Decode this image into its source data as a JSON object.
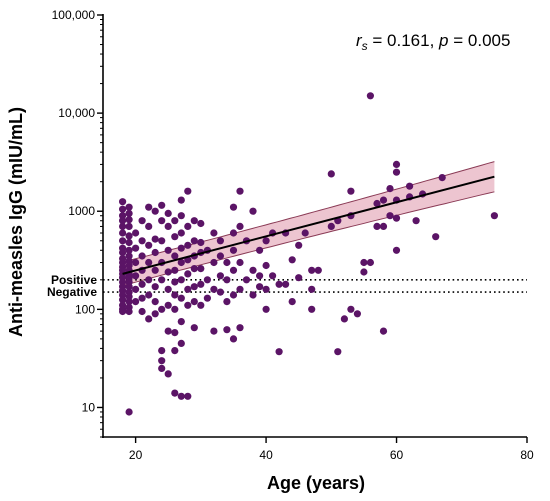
{
  "chart_data": {
    "type": "scatter",
    "xlabel": "Age (years)",
    "ylabel": "Anti-measles IgG (mIU/mL)",
    "xlim": [
      15,
      80
    ],
    "ylim": [
      5,
      100000
    ],
    "y_scale": "log",
    "x_ticks": [
      20,
      40,
      60,
      80
    ],
    "x_tick_labels": [
      "20",
      "40",
      "60",
      "80"
    ],
    "y_ticks": [
      10,
      100,
      1000,
      10000,
      100000
    ],
    "y_tick_labels": [
      "10",
      "100",
      "1000",
      "10,000",
      "100,000"
    ],
    "annotation": {
      "r_symbol": "r",
      "r_subscript": "s",
      "r_value": " = 0.161, ",
      "p_symbol": "p",
      "p_value": " = 0.005"
    },
    "thresholds": [
      {
        "label": "Positive",
        "value": 200
      },
      {
        "label": "Negative",
        "value": 150
      }
    ],
    "regression": {
      "x_range": [
        18,
        75
      ],
      "y_start": 230,
      "y_end": 2250,
      "ci_lower_start": 175,
      "ci_upper_start": 305,
      "ci_lower_end": 1550,
      "ci_upper_end": 3150
    },
    "colors": {
      "points": "#5b1466",
      "line": "#000000",
      "band": "#e8b6c4",
      "band_edge": "#8a3a55"
    },
    "points": [
      [
        18,
        1250
      ],
      [
        18,
        1050
      ],
      [
        18,
        900
      ],
      [
        18,
        800
      ],
      [
        18,
        700
      ],
      [
        18,
        600
      ],
      [
        18,
        500
      ],
      [
        18,
        420
      ],
      [
        18,
        380
      ],
      [
        18,
        330
      ],
      [
        18,
        300
      ],
      [
        18,
        270
      ],
      [
        18,
        250
      ],
      [
        18,
        230
      ],
      [
        18,
        210
      ],
      [
        18,
        190
      ],
      [
        18,
        170
      ],
      [
        18,
        155
      ],
      [
        18,
        140
      ],
      [
        18,
        125
      ],
      [
        18,
        110
      ],
      [
        18,
        100
      ],
      [
        18,
        95
      ],
      [
        19,
        1100
      ],
      [
        19,
        950
      ],
      [
        19,
        820
      ],
      [
        19,
        700
      ],
      [
        19,
        560
      ],
      [
        19,
        480
      ],
      [
        19,
        400
      ],
      [
        19,
        350
      ],
      [
        19,
        310
      ],
      [
        19,
        280
      ],
      [
        19,
        250
      ],
      [
        19,
        230
      ],
      [
        19,
        210
      ],
      [
        19,
        190
      ],
      [
        19,
        170
      ],
      [
        19,
        150
      ],
      [
        19,
        135
      ],
      [
        19,
        120
      ],
      [
        19,
        105
      ],
      [
        19,
        95
      ],
      [
        19,
        9
      ],
      [
        20,
        600
      ],
      [
        20,
        420
      ],
      [
        20,
        300
      ],
      [
        20,
        220
      ],
      [
        20,
        160
      ],
      [
        20,
        120
      ],
      [
        21,
        800
      ],
      [
        21,
        500
      ],
      [
        21,
        350
      ],
      [
        21,
        250
      ],
      [
        21,
        180
      ],
      [
        21,
        130
      ],
      [
        21,
        95
      ],
      [
        22,
        1100
      ],
      [
        22,
        700
      ],
      [
        22,
        450
      ],
      [
        22,
        300
      ],
      [
        22,
        200
      ],
      [
        22,
        140
      ],
      [
        22,
        80
      ],
      [
        23,
        1000
      ],
      [
        23,
        520
      ],
      [
        23,
        380
      ],
      [
        23,
        250
      ],
      [
        23,
        170
      ],
      [
        23,
        120
      ],
      [
        23,
        90
      ],
      [
        24,
        1150
      ],
      [
        24,
        800
      ],
      [
        24,
        500
      ],
      [
        24,
        300
      ],
      [
        24,
        200
      ],
      [
        24,
        100
      ],
      [
        24,
        38
      ],
      [
        24,
        30
      ],
      [
        24,
        25
      ],
      [
        25,
        950
      ],
      [
        25,
        700
      ],
      [
        25,
        400
      ],
      [
        25,
        240
      ],
      [
        25,
        160
      ],
      [
        25,
        110
      ],
      [
        25,
        60
      ],
      [
        25,
        22
      ],
      [
        26,
        800
      ],
      [
        26,
        550
      ],
      [
        26,
        350
      ],
      [
        26,
        250
      ],
      [
        26,
        190
      ],
      [
        26,
        140
      ],
      [
        26,
        100
      ],
      [
        26,
        58
      ],
      [
        26,
        38
      ],
      [
        26,
        14
      ],
      [
        27,
        1300
      ],
      [
        27,
        900
      ],
      [
        27,
        600
      ],
      [
        27,
        420
      ],
      [
        27,
        300
      ],
      [
        27,
        200
      ],
      [
        27,
        130
      ],
      [
        27,
        75
      ],
      [
        27,
        45
      ],
      [
        27,
        13
      ],
      [
        28,
        1600
      ],
      [
        28,
        700
      ],
      [
        28,
        450
      ],
      [
        28,
        320
      ],
      [
        28,
        230
      ],
      [
        28,
        160
      ],
      [
        28,
        110
      ],
      [
        28,
        13
      ],
      [
        29,
        800
      ],
      [
        29,
        500
      ],
      [
        29,
        350
      ],
      [
        29,
        260
      ],
      [
        29,
        170
      ],
      [
        29,
        120
      ],
      [
        29,
        65
      ],
      [
        30,
        750
      ],
      [
        30,
        480
      ],
      [
        30,
        380
      ],
      [
        30,
        260
      ],
      [
        30,
        180
      ],
      [
        30,
        110
      ],
      [
        31,
        400
      ],
      [
        31,
        200
      ],
      [
        31,
        130
      ],
      [
        32,
        600
      ],
      [
        32,
        300
      ],
      [
        32,
        160
      ],
      [
        32,
        60
      ],
      [
        33,
        500
      ],
      [
        33,
        350
      ],
      [
        33,
        220
      ],
      [
        33,
        150
      ],
      [
        34,
        300
      ],
      [
        34,
        200
      ],
      [
        34,
        120
      ],
      [
        34,
        62
      ],
      [
        35,
        1100
      ],
      [
        35,
        600
      ],
      [
        35,
        400
      ],
      [
        35,
        250
      ],
      [
        35,
        140
      ],
      [
        35,
        50
      ],
      [
        36,
        1600
      ],
      [
        36,
        700
      ],
      [
        36,
        300
      ],
      [
        36,
        160
      ],
      [
        36,
        65
      ],
      [
        37,
        500
      ],
      [
        37,
        200
      ],
      [
        38,
        1000
      ],
      [
        38,
        250
      ],
      [
        38,
        140
      ],
      [
        39,
        400
      ],
      [
        39,
        220
      ],
      [
        39,
        170
      ],
      [
        40,
        500
      ],
      [
        40,
        280
      ],
      [
        40,
        160
      ],
      [
        40,
        100
      ],
      [
        41,
        600
      ],
      [
        41,
        220
      ],
      [
        42,
        37
      ],
      [
        42,
        180
      ],
      [
        43,
        600
      ],
      [
        43,
        180
      ],
      [
        44,
        320
      ],
      [
        44,
        120
      ],
      [
        45,
        450
      ],
      [
        45,
        210
      ],
      [
        46,
        600
      ],
      [
        47,
        250
      ],
      [
        47,
        160
      ],
      [
        47,
        100
      ],
      [
        48,
        250
      ],
      [
        50,
        2400
      ],
      [
        50,
        700
      ],
      [
        51,
        800
      ],
      [
        51,
        37
      ],
      [
        52,
        80
      ],
      [
        53,
        1600
      ],
      [
        53,
        900
      ],
      [
        53,
        100
      ],
      [
        54,
        90
      ],
      [
        55,
        300
      ],
      [
        55,
        240
      ],
      [
        56,
        15000
      ],
      [
        56,
        300
      ],
      [
        57,
        1200
      ],
      [
        57,
        700
      ],
      [
        58,
        1300
      ],
      [
        58,
        700
      ],
      [
        58,
        60
      ],
      [
        59,
        1700
      ],
      [
        59,
        900
      ],
      [
        60,
        3000
      ],
      [
        60,
        2500
      ],
      [
        60,
        1300
      ],
      [
        60,
        850
      ],
      [
        60,
        400
      ],
      [
        62,
        1800
      ],
      [
        62,
        1400
      ],
      [
        63,
        800
      ],
      [
        64,
        1500
      ],
      [
        66,
        550
      ],
      [
        67,
        2200
      ],
      [
        75,
        900
      ]
    ]
  }
}
